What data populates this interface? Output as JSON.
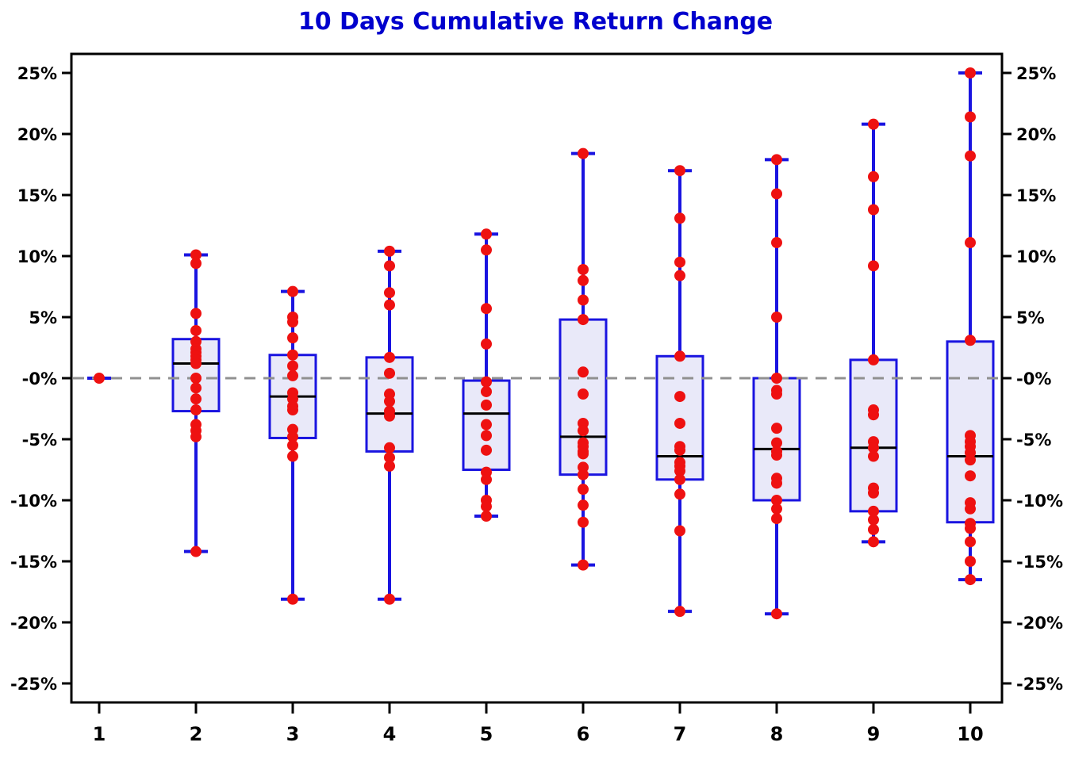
{
  "chart_data": {
    "type": "boxplot",
    "title": "10 Days Cumulative Return Change",
    "xlabel": "",
    "ylabel": "",
    "categories": [
      "1",
      "2",
      "3",
      "4",
      "5",
      "6",
      "7",
      "8",
      "9",
      "10"
    ],
    "y_axis": {
      "unit": "%",
      "tick_values": [
        25,
        20,
        15,
        10,
        5,
        0,
        -5,
        -10,
        -15,
        -20,
        -25
      ],
      "tick_labels_left": [
        "25%",
        "20%",
        "15%",
        "10%",
        "5%",
        "-0%",
        "-5%",
        "-10%",
        "-15%",
        "-20%",
        "-25%"
      ],
      "tick_labels_right": [
        "25%",
        "20%",
        "15%",
        "10%",
        "5%",
        "-0%",
        "-5%",
        "-10%",
        "-15%",
        "-20%",
        "-25%"
      ],
      "range": [
        -26.6,
        26.6
      ]
    },
    "grid": "off",
    "legend_position": "none",
    "zero_reference_line": {
      "value": 0,
      "style": "dashed"
    },
    "boxes": [
      {
        "category": "1",
        "whisker_low": 0,
        "q1": 0,
        "median": 0,
        "q3": 0,
        "whisker_high": 0,
        "points": [
          0
        ]
      },
      {
        "category": "2",
        "whisker_low": -14.2,
        "q1": -2.7,
        "median": 1.2,
        "q3": 3.2,
        "whisker_high": 10.1,
        "points": [
          10.1,
          9.4,
          5.3,
          3.9,
          3.0,
          2.4,
          2.1,
          1.8,
          1.5,
          1.2,
          0.0,
          -0.8,
          -1.7,
          -2.6,
          -3.8,
          -4.3,
          -4.8,
          -14.2
        ]
      },
      {
        "category": "3",
        "whisker_low": -18.1,
        "q1": -4.9,
        "median": -1.5,
        "q3": 1.9,
        "whisker_high": 7.1,
        "points": [
          7.1,
          5.0,
          4.6,
          3.3,
          1.9,
          1.0,
          0.2,
          -1.2,
          -1.7,
          -2.3,
          -2.6,
          -4.2,
          -4.8,
          -5.5,
          -6.4,
          -18.1
        ]
      },
      {
        "category": "4",
        "whisker_low": -18.1,
        "q1": -6.0,
        "median": -2.9,
        "q3": 1.7,
        "whisker_high": 10.4,
        "points": [
          10.4,
          9.2,
          7.0,
          6.0,
          1.7,
          0.4,
          -1.3,
          -1.9,
          -2.7,
          -3.1,
          -5.7,
          -6.5,
          -7.2,
          -18.1
        ]
      },
      {
        "category": "5",
        "whisker_low": -11.3,
        "q1": -7.5,
        "median": -2.9,
        "q3": -0.2,
        "whisker_high": 11.8,
        "points": [
          11.8,
          10.5,
          5.7,
          2.8,
          -0.3,
          -1.1,
          -2.2,
          -3.8,
          -4.7,
          -5.9,
          -7.7,
          -8.3,
          -10.0,
          -10.5,
          -11.3
        ]
      },
      {
        "category": "6",
        "whisker_low": -15.3,
        "q1": -7.9,
        "median": -4.8,
        "q3": 4.8,
        "whisker_high": 18.4,
        "points": [
          18.4,
          8.9,
          8.0,
          6.4,
          4.8,
          0.5,
          -1.3,
          -3.7,
          -4.3,
          -5.3,
          -5.6,
          -6.0,
          -6.2,
          -7.3,
          -7.9,
          -9.1,
          -10.4,
          -11.8,
          -15.3
        ]
      },
      {
        "category": "7",
        "whisker_low": -19.1,
        "q1": -8.3,
        "median": -6.4,
        "q3": 1.8,
        "whisker_high": 17.0,
        "points": [
          17.0,
          13.1,
          9.5,
          8.4,
          1.8,
          -1.5,
          -3.7,
          -5.6,
          -5.9,
          -6.9,
          -7.2,
          -7.6,
          -8.3,
          -9.5,
          -12.5,
          -19.1
        ]
      },
      {
        "category": "8",
        "whisker_low": -19.3,
        "q1": -10.0,
        "median": -5.8,
        "q3": 0.0,
        "whisker_high": 17.9,
        "points": [
          17.9,
          15.1,
          11.1,
          5.0,
          0.0,
          -1.0,
          -1.3,
          -4.1,
          -5.3,
          -6.0,
          -6.3,
          -8.2,
          -8.6,
          -10.0,
          -10.7,
          -11.5,
          -19.3
        ]
      },
      {
        "category": "9",
        "whisker_low": -13.4,
        "q1": -10.9,
        "median": -5.7,
        "q3": 1.5,
        "whisker_high": 20.8,
        "points": [
          20.8,
          16.5,
          13.8,
          9.2,
          1.5,
          -2.6,
          -3.0,
          -5.2,
          -5.7,
          -6.4,
          -9.0,
          -9.4,
          -10.9,
          -11.6,
          -12.4,
          -13.4
        ]
      },
      {
        "category": "10",
        "whisker_low": -16.5,
        "q1": -11.8,
        "median": -6.4,
        "q3": 3.0,
        "whisker_high": 25.0,
        "points": [
          25.0,
          21.4,
          18.2,
          11.1,
          3.1,
          -4.7,
          -5.2,
          -5.6,
          -6.1,
          -6.7,
          -8.0,
          -10.2,
          -10.7,
          -11.9,
          -12.3,
          -13.4,
          -15.0,
          -16.5
        ]
      }
    ]
  },
  "colors": {
    "title": "#0000CD",
    "box_edge": "#1A14E0",
    "box_fill": "#E9E9F9",
    "whisker": "#1A14E0",
    "median": "#000000",
    "points": "#EE1111",
    "axis": "#000000",
    "zero_line": "#909090",
    "background": "#FFFFFF"
  }
}
